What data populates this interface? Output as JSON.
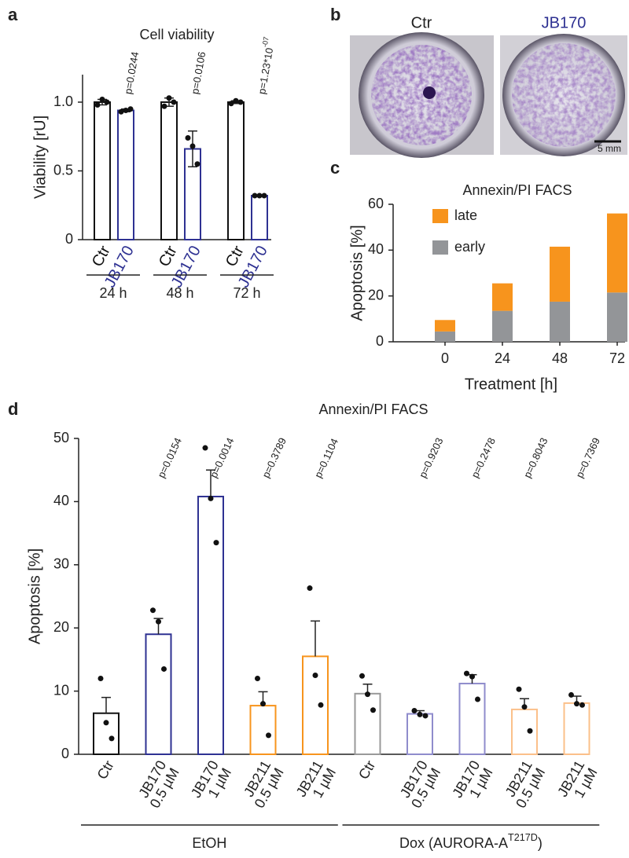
{
  "panel_labels": [
    "a",
    "b",
    "c",
    "d"
  ],
  "images": {
    "labels": [
      "Ctr",
      "JB170"
    ],
    "scale_bar": "5 mm"
  },
  "chart_data": [
    {
      "type": "bar",
      "title": "Cell viability",
      "ylabel": "Viability [rU]",
      "categories": [
        [
          "Ctr"
        ],
        [
          "JB170"
        ],
        [
          "Ctr"
        ],
        [
          "JB170"
        ],
        [
          "Ctr"
        ],
        [
          "JB170"
        ]
      ],
      "values": [
        1.0,
        0.94,
        1.0,
        0.66,
        1.0,
        0.32
      ],
      "errors": [
        0.02,
        0.01,
        0.03,
        0.13,
        0.01,
        0.005
      ],
      "error_bars": "both",
      "points": [
        [
          0.98,
          1.02,
          1.0
        ],
        [
          0.93,
          0.94,
          0.95
        ],
        [
          0.97,
          1.03,
          1.0
        ],
        [
          0.74,
          0.68,
          0.55
        ],
        [
          0.99,
          1.01,
          1.0
        ],
        [
          0.32,
          0.32,
          0.32
        ]
      ],
      "colors": [
        "#111111",
        "#2e3192",
        "#111111",
        "#2e3192",
        "#111111",
        "#2e3192"
      ],
      "label_colors": true,
      "annotations": [
        null,
        {
          "text": "p=0.0244"
        },
        null,
        {
          "text": "p=0.0106"
        },
        null,
        {
          "text": "p=1.23*10",
          "sup": "-07"
        }
      ],
      "groups": [
        {
          "text": "24 h"
        },
        {
          "text": "48 h"
        },
        {
          "text": "72 h"
        }
      ],
      "ylim": [
        0,
        1.2
      ],
      "yticks": [
        0,
        0.5,
        {
          "value": 1,
          "label": "1.0"
        }
      ]
    },
    {
      "type": "stacked_bar",
      "title": "Annexin/PI FACS",
      "ylabel": "Apoptosis [%]",
      "xlabel": "Treatment [h]",
      "categories": [
        "0",
        "24",
        "48",
        "72"
      ],
      "series": [
        {
          "name": "early",
          "color": "#939598",
          "values": [
            4.5,
            13.5,
            17.5,
            21.5
          ]
        },
        {
          "name": "late",
          "color": "#f7941d",
          "values": [
            5,
            12,
            24,
            34.5
          ]
        }
      ],
      "ylim": [
        0,
        60
      ],
      "yticks": [
        0,
        20,
        40,
        60
      ]
    },
    {
      "type": "bar",
      "title": "Annexin/PI FACS",
      "ylabel": "Apoptosis [%]",
      "categories": [
        [
          "Ctr"
        ],
        [
          "JB170",
          "0.5 µM"
        ],
        [
          "JB170",
          "1 µM"
        ],
        [
          "JB211",
          "0.5 µM"
        ],
        [
          "JB211",
          "1 µM"
        ],
        [
          "Ctr"
        ],
        [
          "JB170",
          "0.5 µM"
        ],
        [
          "JB170",
          "1 µM"
        ],
        [
          "JB211",
          "0.5 µM"
        ],
        [
          "JB211",
          "1 µM"
        ]
      ],
      "values": [
        6.5,
        19,
        40.8,
        7.7,
        15.5,
        9.6,
        6.4,
        11.2,
        7.1,
        8.1
      ],
      "errors": [
        2.5,
        2.5,
        4.2,
        2.2,
        5.6,
        1.5,
        0.5,
        1.4,
        1.7,
        1.1
      ],
      "error_bars": "upper",
      "points": [
        [
          12,
          5,
          2.5
        ],
        [
          22.8,
          21,
          13.5
        ],
        [
          48.5,
          40.5,
          33.5
        ],
        [
          12,
          8,
          3
        ],
        [
          26.3,
          12.5,
          7.8
        ],
        [
          12.4,
          9.5,
          7
        ],
        [
          6.9,
          6.3,
          6.1
        ],
        [
          12.8,
          12.3,
          8.7
        ],
        [
          10.3,
          7.5,
          3.7
        ],
        [
          9.4,
          8,
          7.8
        ]
      ],
      "colors": [
        "#111111",
        "#2e3192",
        "#2e3192",
        "#f7941d",
        "#f7941d",
        "#999999",
        "#8f8ccc",
        "#8f8ccc",
        "#fbc08a",
        "#fbc08a"
      ],
      "annotations": [
        null,
        {
          "text": "p=0.0154"
        },
        {
          "text": "p=0.0014"
        },
        {
          "text": "p=0.3789"
        },
        {
          "text": "p=0.1104"
        },
        null,
        {
          "text": "p=0.9203"
        },
        {
          "text": "p=0.2478"
        },
        {
          "text": "p=0.8043"
        },
        {
          "text": "p=0.7369"
        }
      ],
      "groups": [
        {
          "text": "EtOH"
        },
        {
          "text": "Dox (AURORA-A",
          "sup": "T217D",
          "after": ")"
        }
      ],
      "ylim": [
        0,
        50
      ],
      "yticks": [
        0,
        10,
        20,
        30,
        40,
        50
      ]
    }
  ]
}
